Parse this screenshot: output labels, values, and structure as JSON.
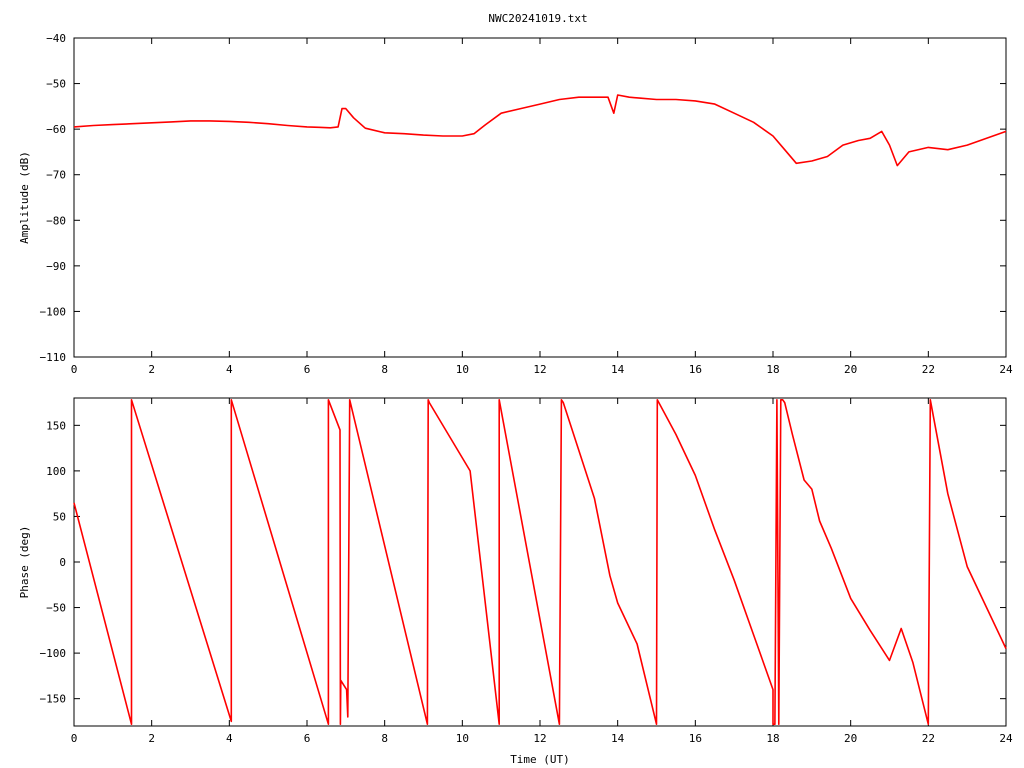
{
  "title": "NWC20241019.txt",
  "colors": {
    "series": "#ff0000",
    "axis": "#000000",
    "background": "#ffffff"
  },
  "chart_data": [
    {
      "type": "line",
      "xlabel": "",
      "ylabel": "Amplitude (dB)",
      "xlim": [
        0,
        24
      ],
      "ylim": [
        -110,
        -40
      ],
      "xticks": [
        "0",
        "2",
        "4",
        "6",
        "8",
        "10",
        "12",
        "14",
        "16",
        "18",
        "20",
        "22",
        "24"
      ],
      "yticks": [
        "−110",
        "−100",
        "−90",
        "−80",
        "−70",
        "−60",
        "−50",
        "−40"
      ],
      "grid": false,
      "series": [
        {
          "x": [
            0,
            0.5,
            1,
            1.5,
            2,
            2.5,
            3,
            3.5,
            4,
            4.5,
            5,
            5.5,
            6,
            6.3,
            6.6,
            6.8,
            6.9,
            7.0,
            7.2,
            7.5,
            8,
            8.5,
            9,
            9.5,
            10,
            10.3,
            10.6,
            11,
            11.5,
            12,
            12.5,
            13,
            13.5,
            13.75,
            13.9,
            14.0,
            14.3,
            14.6,
            15,
            15.5,
            16,
            16.5,
            17,
            17.5,
            18,
            18.3,
            18.6,
            19,
            19.4,
            19.8,
            20.2,
            20.5,
            20.8,
            21.0,
            21.2,
            21.5,
            22,
            22.5,
            23,
            23.5,
            24
          ],
          "y": [
            -59.5,
            -59.2,
            -59.0,
            -58.8,
            -58.6,
            -58.4,
            -58.2,
            -58.2,
            -58.3,
            -58.5,
            -58.8,
            -59.2,
            -59.5,
            -59.6,
            -59.7,
            -59.5,
            -55.5,
            -55.5,
            -57.5,
            -59.8,
            -60.8,
            -61.0,
            -61.3,
            -61.5,
            -61.5,
            -61.0,
            -59.0,
            -56.5,
            -55.5,
            -54.5,
            -53.5,
            -53.0,
            -53.0,
            -53.0,
            -56.5,
            -52.5,
            -53.0,
            -53.2,
            -53.5,
            -53.5,
            -53.8,
            -54.5,
            -56.5,
            -58.5,
            -61.5,
            -64.5,
            -67.5,
            -67.0,
            -66.0,
            -63.5,
            -62.5,
            -62.0,
            -60.5,
            -63.5,
            -68.0,
            -65.0,
            -64.0,
            -64.5,
            -63.5,
            -62.0,
            -60.5
          ]
        }
      ]
    },
    {
      "type": "line",
      "xlabel": "Time (UT)",
      "ylabel": "Phase (deg)",
      "xlim": [
        0,
        24
      ],
      "ylim": [
        -180,
        180
      ],
      "xticks": [
        "0",
        "2",
        "4",
        "6",
        "8",
        "10",
        "12",
        "14",
        "16",
        "18",
        "20",
        "22",
        "24"
      ],
      "yticks": [
        "−150",
        "−100",
        "−50",
        "0",
        "50",
        "100",
        "150"
      ],
      "grid": false,
      "series": [
        {
          "x": [
            0,
            1.48,
            1.48,
            4.05,
            4.05,
            6.55,
            6.55,
            6.85,
            6.86,
            6.87,
            7.02,
            7.05,
            7.1,
            7.1,
            9.1,
            9.12,
            9.15,
            10.2,
            10.95,
            10.95,
            12.5,
            12.55,
            12.6,
            13.4,
            13.8,
            14.0,
            14.5,
            15.0,
            15.02,
            15.5,
            16.0,
            16.5,
            17.0,
            17.5,
            18.0,
            18.0,
            18.05,
            18.1,
            18.15,
            18.2,
            18.25,
            18.3,
            18.5,
            18.8,
            19.0,
            19.2,
            19.5,
            20.0,
            20.5,
            21.0,
            21.3,
            21.6,
            22.0,
            22.05,
            22.5,
            23.0,
            23.5,
            24.0
          ],
          "y": [
            65,
            -178,
            178,
            -175,
            178,
            -178,
            178,
            145,
            -178,
            -130,
            -140,
            -170,
            178,
            178,
            -178,
            178,
            175,
            100,
            -178,
            178,
            -178,
            178,
            175,
            70,
            -15,
            -45,
            -90,
            -178,
            178,
            140,
            95,
            35,
            -20,
            -80,
            -140,
            -178,
            -178,
            178,
            -178,
            178,
            178,
            175,
            140,
            90,
            80,
            45,
            15,
            -40,
            -75,
            -108,
            -73,
            -110,
            -178,
            178,
            75,
            -5,
            -50,
            -95
          ]
        }
      ]
    }
  ]
}
